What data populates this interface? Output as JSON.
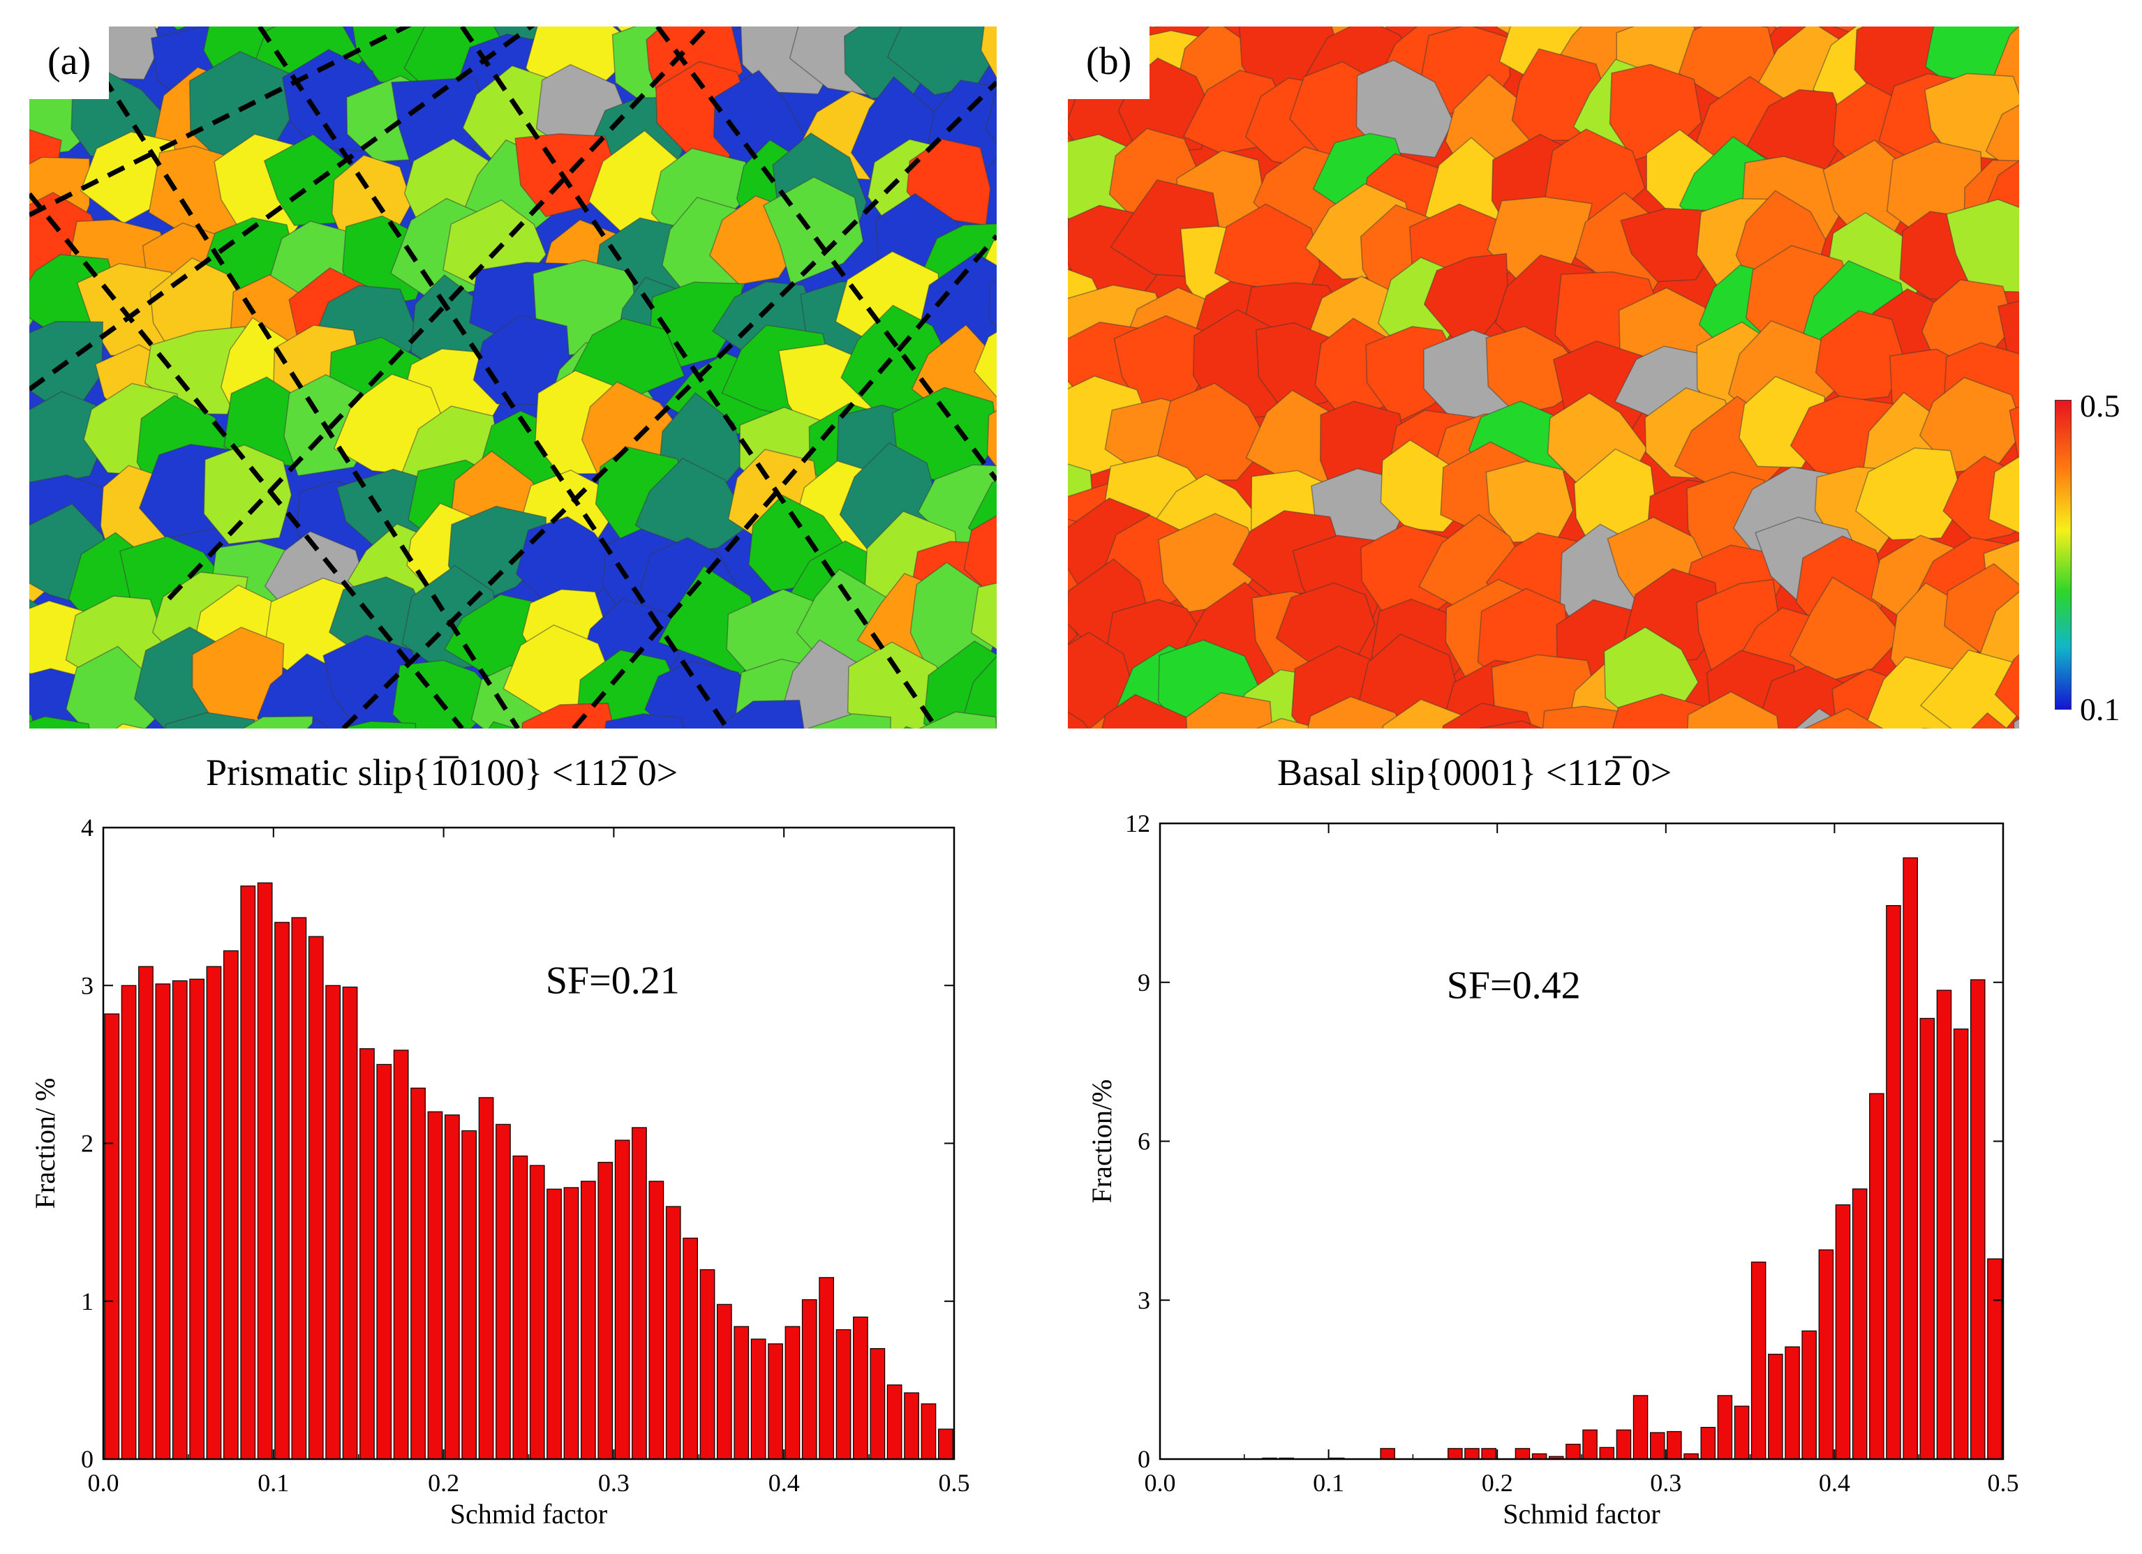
{
  "panels": {
    "a": {
      "label": "(a)",
      "caption": "Prismatic slip{1̅0100} <112̅ 0>"
    },
    "b": {
      "label": "(b)",
      "caption": "Basal slip{0001} <112̅ 0>"
    }
  },
  "colorbar": {
    "max_label": "0.5",
    "min_label": "0.1",
    "colors": [
      "#e8141e",
      "#ff7a10",
      "#f6f01a",
      "#2ed52a",
      "#11b6c8",
      "#1414d2"
    ]
  },
  "colors": {
    "bar_fill": "#ee0a0a",
    "bar_stroke": "#000000",
    "grain_palette_a": [
      "#1e3ad0",
      "#1a8a6a",
      "#16c416",
      "#5cdc3a",
      "#a4e82a",
      "#f6f01a",
      "#f9c81a",
      "#ff9a10",
      "#ff3e12",
      "#a8a8a8"
    ],
    "grain_palette_b": [
      "#f03010",
      "#ff4a10",
      "#ff6a10",
      "#ff8a14",
      "#ffaa18",
      "#ffd01a",
      "#a8e82a",
      "#22d82a",
      "#a8a8a8"
    ]
  },
  "chart_data": [
    {
      "type": "bar",
      "title": "",
      "annotation": "SF=0.21",
      "xlabel": "Schmid factor",
      "ylabel": "Fraction/ %",
      "xlim": [
        0.0,
        0.5
      ],
      "ylim": [
        0,
        4
      ],
      "xticks": [
        "0.0",
        "0.1",
        "0.2",
        "0.3",
        "0.4",
        "0.5"
      ],
      "yticks": [
        "0",
        "1",
        "2",
        "3",
        "4"
      ],
      "x": [
        0.0,
        0.01,
        0.02,
        0.03,
        0.04,
        0.05,
        0.06,
        0.07,
        0.08,
        0.09,
        0.1,
        0.11,
        0.12,
        0.13,
        0.14,
        0.15,
        0.16,
        0.17,
        0.18,
        0.19,
        0.2,
        0.21,
        0.22,
        0.23,
        0.24,
        0.25,
        0.26,
        0.27,
        0.28,
        0.29,
        0.3,
        0.31,
        0.32,
        0.33,
        0.34,
        0.35,
        0.36,
        0.37,
        0.38,
        0.39,
        0.4,
        0.41,
        0.42,
        0.43,
        0.44,
        0.45,
        0.46,
        0.47,
        0.48,
        0.49
      ],
      "values": [
        2.82,
        3.0,
        3.12,
        3.01,
        3.03,
        3.04,
        3.12,
        3.22,
        3.63,
        3.65,
        3.4,
        3.43,
        3.31,
        3.0,
        2.99,
        2.6,
        2.5,
        2.59,
        2.35,
        2.2,
        2.18,
        2.08,
        2.29,
        2.12,
        1.92,
        1.86,
        1.71,
        1.72,
        1.76,
        1.88,
        2.02,
        2.1,
        1.76,
        1.6,
        1.4,
        1.2,
        0.98,
        0.84,
        0.76,
        0.73,
        0.84,
        1.01,
        1.15,
        0.82,
        0.9,
        0.7,
        0.47,
        0.42,
        0.35,
        0.19
      ]
    },
    {
      "type": "bar",
      "title": "",
      "annotation": "SF=0.42",
      "xlabel": "Schmid  factor",
      "ylabel": "Fraction/%",
      "xlim": [
        0.0,
        0.5
      ],
      "ylim": [
        0,
        12
      ],
      "xticks": [
        "0.0",
        "0.1",
        "0.2",
        "0.3",
        "0.4",
        "0.5"
      ],
      "yticks": [
        "0",
        "3",
        "6",
        "9",
        "12"
      ],
      "x": [
        0.0,
        0.01,
        0.02,
        0.03,
        0.04,
        0.05,
        0.06,
        0.07,
        0.08,
        0.09,
        0.1,
        0.11,
        0.12,
        0.13,
        0.14,
        0.15,
        0.16,
        0.17,
        0.18,
        0.19,
        0.2,
        0.21,
        0.22,
        0.23,
        0.24,
        0.25,
        0.26,
        0.27,
        0.28,
        0.29,
        0.3,
        0.31,
        0.32,
        0.33,
        0.34,
        0.35,
        0.36,
        0.37,
        0.38,
        0.39,
        0.4,
        0.41,
        0.42,
        0.43,
        0.44,
        0.45,
        0.46,
        0.47,
        0.48,
        0.49
      ],
      "values": [
        0,
        0,
        0,
        0,
        0,
        0,
        0.02,
        0.02,
        0,
        0,
        0.02,
        0,
        0,
        0.2,
        0,
        0,
        0,
        0.2,
        0.2,
        0.2,
        0,
        0.2,
        0.1,
        0.05,
        0.28,
        0.55,
        0.22,
        0.55,
        1.2,
        0.5,
        0.52,
        0.1,
        0.6,
        1.2,
        1.0,
        3.72,
        1.98,
        2.12,
        2.42,
        3.95,
        4.8,
        5.1,
        6.9,
        10.45,
        11.35,
        8.32,
        8.85,
        8.12,
        9.05,
        3.78
      ]
    }
  ]
}
